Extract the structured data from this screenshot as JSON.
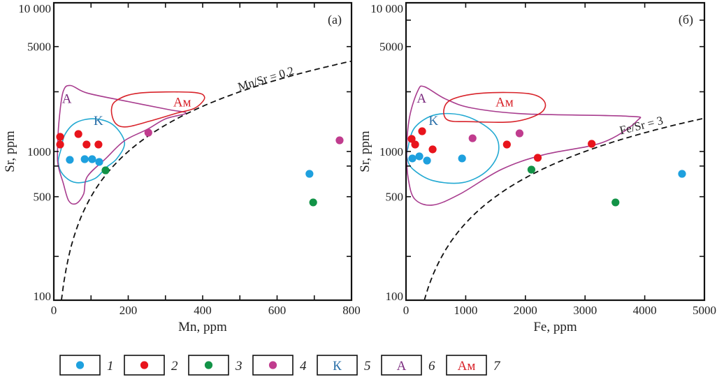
{
  "colors": {
    "group1": "#1ea0de",
    "group2": "#e8141c",
    "group3": "#129347",
    "group4": "#c03c8e",
    "field_K": "#22a9d2",
    "field_A": "#a83c8e",
    "field_Am": "#d8232a",
    "label_K": "#2a6fa8",
    "label_A": "#7a2a7e",
    "label_Am": "#d8232a",
    "axis": "#111111"
  },
  "chart_data": [
    {
      "type": "scatter",
      "panel_label": "(a)",
      "xlabel": "Mn, ppm",
      "ylabel": "Sr, ppm",
      "xlim": [
        0,
        800
      ],
      "ylim": [
        91,
        10900
      ],
      "yscale": "log",
      "x_ticks": [
        0,
        200,
        400,
        600,
        800
      ],
      "x_minor_ticks": [
        100,
        300,
        500,
        700
      ],
      "y_ticks": [
        100,
        500,
        1000,
        5000,
        10000
      ],
      "y_tick_labels": [
        "100",
        "500",
        "1000",
        "5000",
        "10 000"
      ],
      "y_minor_ticks": [
        200,
        800,
        2500
      ],
      "grid": false,
      "ratio_line": {
        "label": "Mn/Sr = 0.2",
        "ratio": 0.2,
        "style": "dashed"
      },
      "series": [
        {
          "name": "1",
          "color_key": "group1",
          "points": [
            [
              43,
              880
            ],
            [
              83,
              889
            ],
            [
              103,
              889
            ],
            [
              122,
              852
            ],
            [
              687,
              710
            ]
          ]
        },
        {
          "name": "2",
          "color_key": "group2",
          "points": [
            [
              17,
              1252
            ],
            [
              17,
              1113
            ],
            [
              66,
              1307
            ],
            [
              88,
              1113
            ],
            [
              120,
              1113
            ]
          ]
        },
        {
          "name": "3",
          "color_key": "group3",
          "points": [
            [
              139,
              749
            ],
            [
              697,
              458
            ]
          ]
        },
        {
          "name": "4",
          "color_key": "group4",
          "points": [
            [
              254,
              1335
            ],
            [
              768,
              1187
            ]
          ]
        }
      ],
      "fields": [
        {
          "name": "K",
          "color_key": "field_K",
          "label_color_key": "label_K",
          "label_at": [
            120,
            1500
          ],
          "outline": [
            [
              20,
              1050
            ],
            [
              30,
              1300
            ],
            [
              60,
              1560
            ],
            [
              110,
              1650
            ],
            [
              160,
              1500
            ],
            [
              190,
              1150
            ],
            [
              170,
              900
            ],
            [
              140,
              780
            ],
            [
              110,
              660
            ],
            [
              60,
              620
            ],
            [
              25,
              700
            ],
            [
              12,
              850
            ]
          ]
        },
        {
          "name": "A",
          "color_key": "field_A",
          "label_color_key": "label_A",
          "label_at": [
            35,
            2100
          ],
          "outline": [
            [
              10,
              1000
            ],
            [
              14,
              1600
            ],
            [
              25,
              2500
            ],
            [
              45,
              2750
            ],
            [
              90,
              2450
            ],
            [
              200,
              2150
            ],
            [
              310,
              1900
            ],
            [
              355,
              1800
            ],
            [
              300,
              1650
            ],
            [
              250,
              1400
            ],
            [
              190,
              1180
            ],
            [
              140,
              900
            ],
            [
              90,
              680
            ],
            [
              80,
              520
            ],
            [
              60,
              450
            ],
            [
              40,
              470
            ],
            [
              25,
              620
            ],
            [
              12,
              800
            ]
          ]
        },
        {
          "name": "Ам",
          "color_key": "field_Am",
          "label_color_key": "label_Am",
          "label_at": [
            345,
            2000
          ],
          "outline": [
            [
              170,
              2200
            ],
            [
              230,
              2450
            ],
            [
              370,
              2480
            ],
            [
              405,
              2300
            ],
            [
              380,
              1950
            ],
            [
              330,
              1800
            ],
            [
              260,
              1600
            ],
            [
              195,
              1460
            ],
            [
              165,
              1550
            ],
            [
              155,
              1900
            ]
          ]
        }
      ]
    },
    {
      "type": "scatter",
      "panel_label": "(б)",
      "xlabel": "Fe, ppm",
      "ylabel": "Sr, ppm",
      "xlim": [
        0,
        5000
      ],
      "ylim": [
        91,
        10900
      ],
      "yscale": "log",
      "x_ticks": [
        0,
        1000,
        2000,
        3000,
        4000,
        5000
      ],
      "x_minor_ticks": [],
      "y_ticks": [
        100,
        500,
        1000,
        5000,
        10000
      ],
      "y_tick_labels": [
        "100",
        "500",
        "1000",
        "5000",
        "10 000"
      ],
      "y_minor_ticks": [
        200,
        800,
        2500,
        7500
      ],
      "grid": false,
      "ratio_line": {
        "label": "Fe/Sr = 3",
        "ratio": 3,
        "style": "dashed"
      },
      "series": [
        {
          "name": "1",
          "color_key": "group1",
          "points": [
            [
              106,
              899
            ],
            [
              223,
              928
            ],
            [
              352,
              870
            ],
            [
              939,
              899
            ],
            [
              4625,
              710
            ]
          ]
        },
        {
          "name": "2",
          "color_key": "group2",
          "points": [
            [
              94,
              1213
            ],
            [
              153,
              1113
            ],
            [
              270,
              1364
            ],
            [
              446,
              1033
            ],
            [
              1690,
              1113
            ],
            [
              2207,
              908
            ],
            [
              3111,
              1125
            ]
          ]
        },
        {
          "name": "3",
          "color_key": "group3",
          "points": [
            [
              2101,
              757
            ],
            [
              3510,
              458
            ]
          ]
        },
        {
          "name": "4",
          "color_key": "group4",
          "points": [
            [
              1115,
              1225
            ],
            [
              1902,
              1321
            ]
          ]
        }
      ],
      "fields": [
        {
          "name": "K",
          "color_key": "field_K",
          "label_color_key": "label_K",
          "label_at": [
            460,
            1500
          ],
          "outline": [
            [
              30,
              1050
            ],
            [
              150,
              1450
            ],
            [
              500,
              1760
            ],
            [
              1000,
              1720
            ],
            [
              1450,
              1350
            ],
            [
              1550,
              1000
            ],
            [
              1350,
              740
            ],
            [
              950,
              620
            ],
            [
              450,
              640
            ],
            [
              120,
              760
            ],
            [
              20,
              900
            ]
          ]
        },
        {
          "name": "A",
          "color_key": "field_A",
          "label_color_key": "label_A",
          "label_at": [
            260,
            2120
          ],
          "outline": [
            [
              10,
              1000
            ],
            [
              60,
              1700
            ],
            [
              200,
              2550
            ],
            [
              310,
              2700
            ],
            [
              650,
              2250
            ],
            [
              1100,
              1950
            ],
            [
              2000,
              1780
            ],
            [
              3700,
              1720
            ],
            [
              3870,
              1600
            ],
            [
              3300,
              1150
            ],
            [
              2300,
              950
            ],
            [
              1600,
              760
            ],
            [
              900,
              520
            ],
            [
              450,
              440
            ],
            [
              150,
              480
            ],
            [
              40,
              650
            ]
          ]
        },
        {
          "name": "Ам",
          "color_key": "field_Am",
          "label_color_key": "label_Am",
          "label_at": [
            1650,
            2000
          ],
          "outline": [
            [
              800,
              2250
            ],
            [
              1300,
              2450
            ],
            [
              2050,
              2430
            ],
            [
              2320,
              2150
            ],
            [
              2250,
              1800
            ],
            [
              1800,
              1580
            ],
            [
              1100,
              1580
            ],
            [
              700,
              1620
            ],
            [
              640,
              1950
            ]
          ]
        }
      ]
    }
  ],
  "legend": {
    "items": [
      {
        "num": "1",
        "kind": "dot",
        "color_key": "group1"
      },
      {
        "num": "2",
        "kind": "dot",
        "color_key": "group2"
      },
      {
        "num": "3",
        "kind": "dot",
        "color_key": "group3"
      },
      {
        "num": "4",
        "kind": "dot",
        "color_key": "group4"
      },
      {
        "num": "5",
        "kind": "text",
        "text": "К",
        "color_key": "label_K"
      },
      {
        "num": "6",
        "kind": "text",
        "text": "А",
        "color_key": "label_A"
      },
      {
        "num": "7",
        "kind": "text",
        "text": "Ам",
        "color_key": "label_Am"
      }
    ]
  }
}
